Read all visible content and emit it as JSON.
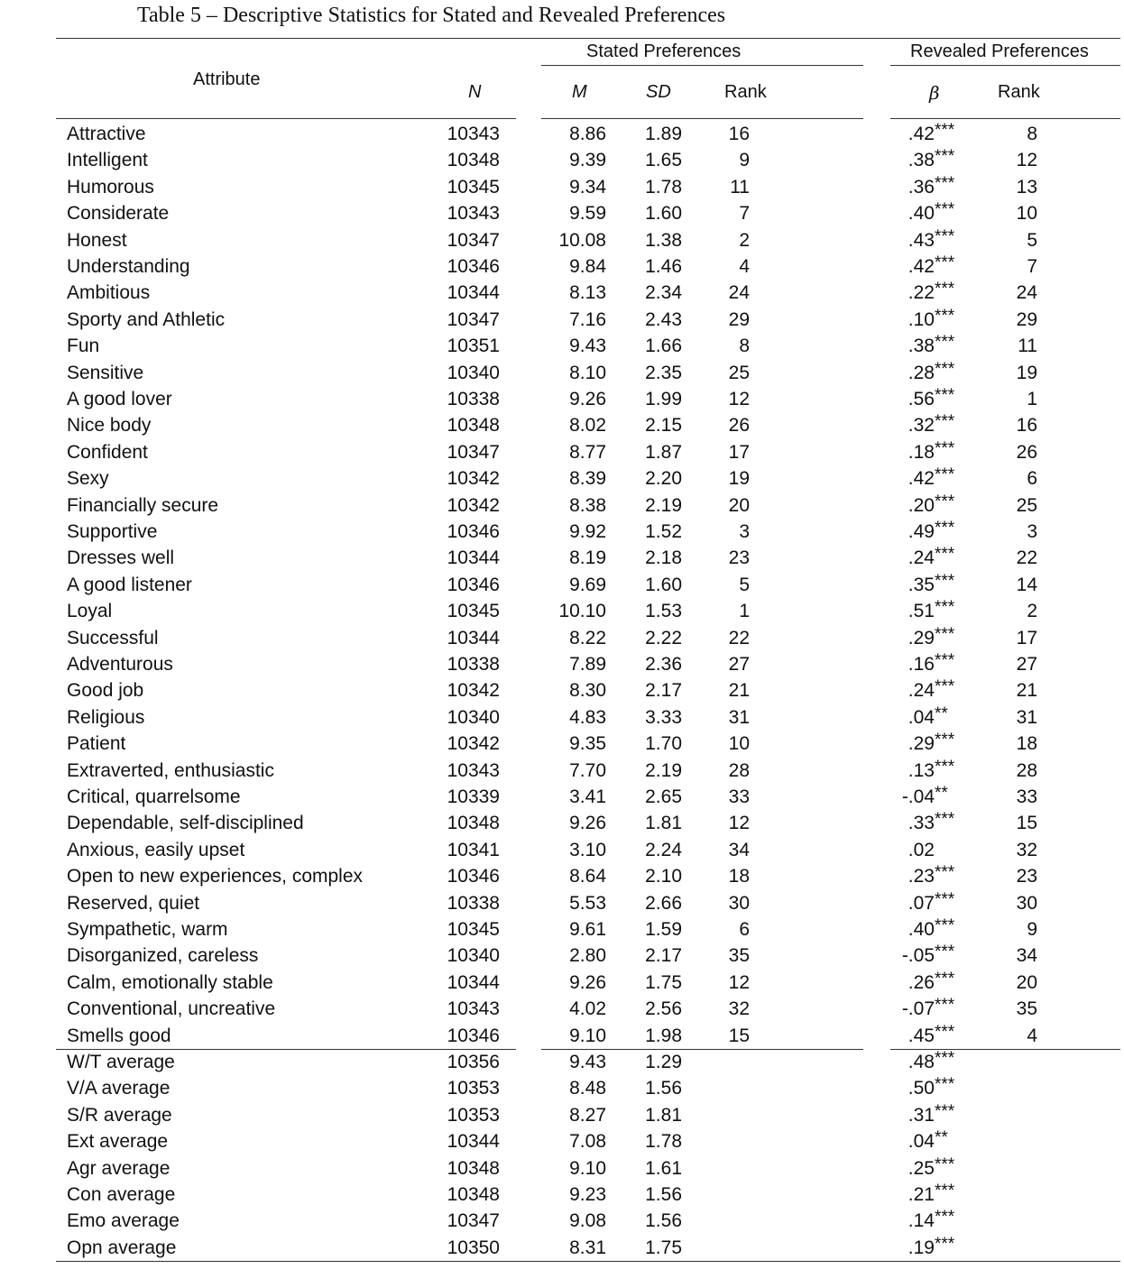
{
  "title": "Table 5 – Descriptive Statistics for Stated and Revealed Preferences",
  "header": {
    "group_stated": "Stated Preferences",
    "group_revealed": "Revealed Preferences",
    "attribute": "Attribute",
    "n": "N",
    "m": "M",
    "sd": "SD",
    "rank": "Rank",
    "beta": "β",
    "rank_revealed": "Rank"
  },
  "rows": [
    {
      "attribute": "Attractive",
      "n": "10343",
      "m": "8.86",
      "sd": "1.89",
      "rank": "16",
      "beta": ".42",
      "sig": "***",
      "rank_revealed": "8"
    },
    {
      "attribute": "Intelligent",
      "n": "10348",
      "m": "9.39",
      "sd": "1.65",
      "rank": "9",
      "beta": ".38",
      "sig": "***",
      "rank_revealed": "12"
    },
    {
      "attribute": "Humorous",
      "n": "10345",
      "m": "9.34",
      "sd": "1.78",
      "rank": "11",
      "beta": ".36",
      "sig": "***",
      "rank_revealed": "13"
    },
    {
      "attribute": "Considerate",
      "n": "10343",
      "m": "9.59",
      "sd": "1.60",
      "rank": "7",
      "beta": ".40",
      "sig": "***",
      "rank_revealed": "10"
    },
    {
      "attribute": "Honest",
      "n": "10347",
      "m": "10.08",
      "sd": "1.38",
      "rank": "2",
      "beta": ".43",
      "sig": "***",
      "rank_revealed": "5"
    },
    {
      "attribute": "Understanding",
      "n": "10346",
      "m": "9.84",
      "sd": "1.46",
      "rank": "4",
      "beta": ".42",
      "sig": "***",
      "rank_revealed": "7"
    },
    {
      "attribute": "Ambitious",
      "n": "10344",
      "m": "8.13",
      "sd": "2.34",
      "rank": "24",
      "beta": ".22",
      "sig": "***",
      "rank_revealed": "24"
    },
    {
      "attribute": "Sporty and Athletic",
      "n": "10347",
      "m": "7.16",
      "sd": "2.43",
      "rank": "29",
      "beta": ".10",
      "sig": "***",
      "rank_revealed": "29"
    },
    {
      "attribute": "Fun",
      "n": "10351",
      "m": "9.43",
      "sd": "1.66",
      "rank": "8",
      "beta": ".38",
      "sig": "***",
      "rank_revealed": "11"
    },
    {
      "attribute": "Sensitive",
      "n": "10340",
      "m": "8.10",
      "sd": "2.35",
      "rank": "25",
      "beta": ".28",
      "sig": "***",
      "rank_revealed": "19"
    },
    {
      "attribute": "A good lover",
      "n": "10338",
      "m": "9.26",
      "sd": "1.99",
      "rank": "12",
      "beta": ".56",
      "sig": "***",
      "rank_revealed": "1"
    },
    {
      "attribute": "Nice body",
      "n": "10348",
      "m": "8.02",
      "sd": "2.15",
      "rank": "26",
      "beta": ".32",
      "sig": "***",
      "rank_revealed": "16"
    },
    {
      "attribute": "Confident",
      "n": "10347",
      "m": "8.77",
      "sd": "1.87",
      "rank": "17",
      "beta": ".18",
      "sig": "***",
      "rank_revealed": "26"
    },
    {
      "attribute": "Sexy",
      "n": "10342",
      "m": "8.39",
      "sd": "2.20",
      "rank": "19",
      "beta": ".42",
      "sig": "***",
      "rank_revealed": "6"
    },
    {
      "attribute": "Financially secure",
      "n": "10342",
      "m": "8.38",
      "sd": "2.19",
      "rank": "20",
      "beta": ".20",
      "sig": "***",
      "rank_revealed": "25"
    },
    {
      "attribute": "Supportive",
      "n": "10346",
      "m": "9.92",
      "sd": "1.52",
      "rank": "3",
      "beta": ".49",
      "sig": "***",
      "rank_revealed": "3"
    },
    {
      "attribute": "Dresses well",
      "n": "10344",
      "m": "8.19",
      "sd": "2.18",
      "rank": "23",
      "beta": ".24",
      "sig": "***",
      "rank_revealed": "22"
    },
    {
      "attribute": "A good listener",
      "n": "10346",
      "m": "9.69",
      "sd": "1.60",
      "rank": "5",
      "beta": ".35",
      "sig": "***",
      "rank_revealed": "14"
    },
    {
      "attribute": "Loyal",
      "n": "10345",
      "m": "10.10",
      "sd": "1.53",
      "rank": "1",
      "beta": ".51",
      "sig": "***",
      "rank_revealed": "2"
    },
    {
      "attribute": "Successful",
      "n": "10344",
      "m": "8.22",
      "sd": "2.22",
      "rank": "22",
      "beta": ".29",
      "sig": "***",
      "rank_revealed": "17"
    },
    {
      "attribute": "Adventurous",
      "n": "10338",
      "m": "7.89",
      "sd": "2.36",
      "rank": "27",
      "beta": ".16",
      "sig": "***",
      "rank_revealed": "27"
    },
    {
      "attribute": "Good job",
      "n": "10342",
      "m": "8.30",
      "sd": "2.17",
      "rank": "21",
      "beta": ".24",
      "sig": "***",
      "rank_revealed": "21"
    },
    {
      "attribute": "Religious",
      "n": "10340",
      "m": "4.83",
      "sd": "3.33",
      "rank": "31",
      "beta": ".04",
      "sig": "**",
      "rank_revealed": "31"
    },
    {
      "attribute": "Patient",
      "n": "10342",
      "m": "9.35",
      "sd": "1.70",
      "rank": "10",
      "beta": ".29",
      "sig": "***",
      "rank_revealed": "18"
    },
    {
      "attribute": "Extraverted, enthusiastic",
      "n": "10343",
      "m": "7.70",
      "sd": "2.19",
      "rank": "28",
      "beta": ".13",
      "sig": "***",
      "rank_revealed": "28"
    },
    {
      "attribute": "Critical, quarrelsome",
      "n": "10339",
      "m": "3.41",
      "sd": "2.65",
      "rank": "33",
      "beta": "-.04",
      "sig": "**",
      "rank_revealed": "33"
    },
    {
      "attribute": "Dependable, self-disciplined",
      "n": "10348",
      "m": "9.26",
      "sd": "1.81",
      "rank": "12",
      "beta": ".33",
      "sig": "***",
      "rank_revealed": "15"
    },
    {
      "attribute": "Anxious, easily upset",
      "n": "10341",
      "m": "3.10",
      "sd": "2.24",
      "rank": "34",
      "beta": ".02",
      "sig": "",
      "rank_revealed": "32"
    },
    {
      "attribute": "Open to new experiences, complex",
      "n": "10346",
      "m": "8.64",
      "sd": "2.10",
      "rank": "18",
      "beta": ".23",
      "sig": "***",
      "rank_revealed": "23"
    },
    {
      "attribute": "Reserved, quiet",
      "n": "10338",
      "m": "5.53",
      "sd": "2.66",
      "rank": "30",
      "beta": ".07",
      "sig": "***",
      "rank_revealed": "30"
    },
    {
      "attribute": "Sympathetic, warm",
      "n": "10345",
      "m": "9.61",
      "sd": "1.59",
      "rank": "6",
      "beta": ".40",
      "sig": "***",
      "rank_revealed": "9"
    },
    {
      "attribute": "Disorganized, careless",
      "n": "10340",
      "m": "2.80",
      "sd": "2.17",
      "rank": "35",
      "beta": "-.05",
      "sig": "***",
      "rank_revealed": "34"
    },
    {
      "attribute": "Calm, emotionally stable",
      "n": "10344",
      "m": "9.26",
      "sd": "1.75",
      "rank": "12",
      "beta": ".26",
      "sig": "***",
      "rank_revealed": "20"
    },
    {
      "attribute": "Conventional, uncreative",
      "n": "10343",
      "m": "4.02",
      "sd": "2.56",
      "rank": "32",
      "beta": "-.07",
      "sig": "***",
      "rank_revealed": "35"
    },
    {
      "attribute": "Smells good",
      "n": "10346",
      "m": "9.10",
      "sd": "1.98",
      "rank": "15",
      "beta": ".45",
      "sig": "***",
      "rank_revealed": "4"
    }
  ],
  "averages": [
    {
      "attribute": "W/T average",
      "n": "10356",
      "m": "9.43",
      "sd": "1.29",
      "beta": ".48",
      "sig": "***"
    },
    {
      "attribute": "V/A average",
      "n": "10353",
      "m": "8.48",
      "sd": "1.56",
      "beta": ".50",
      "sig": "***"
    },
    {
      "attribute": "S/R average",
      "n": "10353",
      "m": "8.27",
      "sd": "1.81",
      "beta": ".31",
      "sig": "***"
    },
    {
      "attribute": "Ext average",
      "n": "10344",
      "m": "7.08",
      "sd": "1.78",
      "beta": ".04",
      "sig": "**"
    },
    {
      "attribute": "Agr average",
      "n": "10348",
      "m": "9.10",
      "sd": "1.61",
      "beta": ".25",
      "sig": "***"
    },
    {
      "attribute": "Con average",
      "n": "10348",
      "m": "9.23",
      "sd": "1.56",
      "beta": ".21",
      "sig": "***"
    },
    {
      "attribute": "Emo average",
      "n": "10347",
      "m": "9.08",
      "sd": "1.56",
      "beta": ".14",
      "sig": "***"
    },
    {
      "attribute": "Opn average",
      "n": "10350",
      "m": "8.31",
      "sd": "1.75",
      "beta": ".19",
      "sig": "***"
    }
  ]
}
